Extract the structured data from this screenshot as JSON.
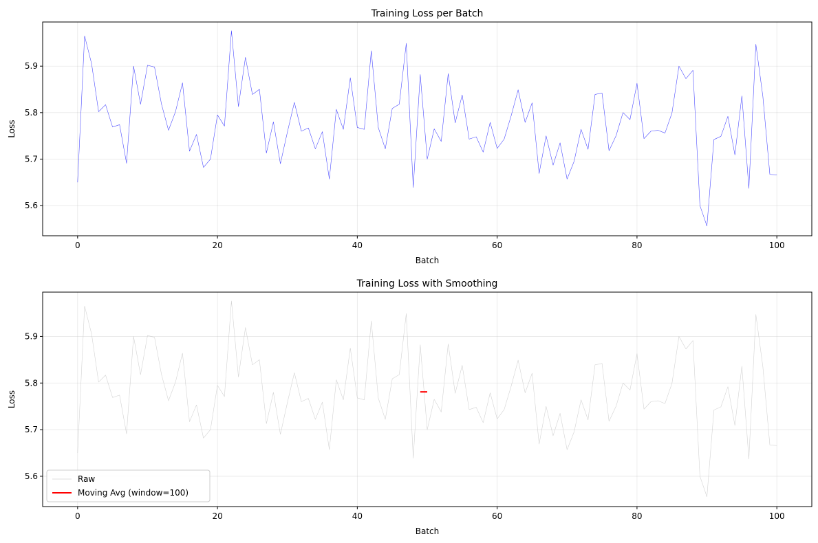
{
  "chart_data": [
    {
      "type": "line",
      "title": "Training Loss per Batch",
      "xlabel": "Batch",
      "ylabel": "Loss",
      "xlim": [
        -5,
        105
      ],
      "ylim": [
        5.535,
        5.995
      ],
      "xticks": [
        0,
        20,
        40,
        60,
        80,
        100
      ],
      "yticks": [
        5.6,
        5.7,
        5.8,
        5.9
      ],
      "grid": true,
      "legend": null,
      "series": [
        {
          "color": "#0000ff",
          "x": [
            0,
            1,
            2,
            3,
            4,
            5,
            6,
            7,
            8,
            9,
            10,
            11,
            12,
            13,
            14,
            15,
            16,
            17,
            18,
            19,
            20,
            21,
            22,
            23,
            24,
            25,
            26,
            27,
            28,
            29,
            30,
            31,
            32,
            33,
            34,
            35,
            36,
            37,
            38,
            39,
            40,
            41,
            42,
            43,
            44,
            45,
            46,
            47,
            48,
            49,
            50,
            51,
            52,
            53,
            54,
            55,
            56,
            57,
            58,
            59,
            60,
            61,
            62,
            63,
            64,
            65,
            66,
            67,
            68,
            69,
            70,
            71,
            72,
            73,
            74,
            75,
            76,
            77,
            78,
            79,
            80,
            81,
            82,
            83,
            84,
            85,
            86,
            87,
            88,
            89,
            90,
            91,
            92,
            93,
            94,
            95,
            96,
            97,
            98,
            99,
            100
          ],
          "y": [
            5.65,
            5.965,
            5.905,
            5.802,
            5.817,
            5.769,
            5.774,
            5.691,
            5.9,
            5.818,
            5.902,
            5.898,
            5.818,
            5.762,
            5.802,
            5.864,
            5.717,
            5.753,
            5.682,
            5.7,
            5.795,
            5.771,
            5.976,
            5.813,
            5.919,
            5.839,
            5.85,
            5.713,
            5.78,
            5.69,
            5.758,
            5.822,
            5.76,
            5.767,
            5.722,
            5.759,
            5.657,
            5.807,
            5.764,
            5.875,
            5.768,
            5.764,
            5.933,
            5.768,
            5.722,
            5.809,
            5.818,
            5.949,
            5.639,
            5.882,
            5.7,
            5.765,
            5.738,
            5.884,
            5.778,
            5.838,
            5.743,
            5.748,
            5.715,
            5.779,
            5.723,
            5.743,
            5.793,
            5.849,
            5.779,
            5.821,
            5.669,
            5.75,
            5.687,
            5.735,
            5.657,
            5.695,
            5.764,
            5.721,
            5.839,
            5.842,
            5.718,
            5.75,
            5.8,
            5.785,
            5.863,
            5.744,
            5.76,
            5.762,
            5.756,
            5.799,
            5.9,
            5.873,
            5.891,
            5.6,
            5.556,
            5.742,
            5.749,
            5.792,
            5.709,
            5.836,
            5.637,
            5.947,
            5.835,
            5.667,
            5.666
          ]
        }
      ]
    },
    {
      "type": "line",
      "title": "Training Loss with Smoothing",
      "xlabel": "Batch",
      "ylabel": "Loss",
      "xlim": [
        -5,
        105
      ],
      "ylim": [
        5.535,
        5.995
      ],
      "xticks": [
        0,
        20,
        40,
        60,
        80,
        100
      ],
      "yticks": [
        5.6,
        5.7,
        5.8,
        5.9
      ],
      "grid": true,
      "legend": "lower-left",
      "series": [
        {
          "name": "Raw",
          "color": "#c0c0c0",
          "x": [
            0,
            1,
            2,
            3,
            4,
            5,
            6,
            7,
            8,
            9,
            10,
            11,
            12,
            13,
            14,
            15,
            16,
            17,
            18,
            19,
            20,
            21,
            22,
            23,
            24,
            25,
            26,
            27,
            28,
            29,
            30,
            31,
            32,
            33,
            34,
            35,
            36,
            37,
            38,
            39,
            40,
            41,
            42,
            43,
            44,
            45,
            46,
            47,
            48,
            49,
            50,
            51,
            52,
            53,
            54,
            55,
            56,
            57,
            58,
            59,
            60,
            61,
            62,
            63,
            64,
            65,
            66,
            67,
            68,
            69,
            70,
            71,
            72,
            73,
            74,
            75,
            76,
            77,
            78,
            79,
            80,
            81,
            82,
            83,
            84,
            85,
            86,
            87,
            88,
            89,
            90,
            91,
            92,
            93,
            94,
            95,
            96,
            97,
            98,
            99,
            100
          ],
          "y": [
            5.65,
            5.965,
            5.905,
            5.802,
            5.817,
            5.769,
            5.774,
            5.691,
            5.9,
            5.818,
            5.902,
            5.898,
            5.818,
            5.762,
            5.802,
            5.864,
            5.717,
            5.753,
            5.682,
            5.7,
            5.795,
            5.771,
            5.976,
            5.813,
            5.919,
            5.839,
            5.85,
            5.713,
            5.78,
            5.69,
            5.758,
            5.822,
            5.76,
            5.767,
            5.722,
            5.759,
            5.657,
            5.807,
            5.764,
            5.875,
            5.768,
            5.764,
            5.933,
            5.768,
            5.722,
            5.809,
            5.818,
            5.949,
            5.639,
            5.882,
            5.7,
            5.765,
            5.738,
            5.884,
            5.778,
            5.838,
            5.743,
            5.748,
            5.715,
            5.779,
            5.723,
            5.743,
            5.793,
            5.849,
            5.779,
            5.821,
            5.669,
            5.75,
            5.687,
            5.735,
            5.657,
            5.695,
            5.764,
            5.721,
            5.839,
            5.842,
            5.718,
            5.75,
            5.8,
            5.785,
            5.863,
            5.744,
            5.76,
            5.762,
            5.756,
            5.799,
            5.9,
            5.873,
            5.891,
            5.6,
            5.556,
            5.742,
            5.749,
            5.792,
            5.709,
            5.836,
            5.637,
            5.947,
            5.835,
            5.667,
            5.666
          ]
        },
        {
          "name": "Moving Avg (window=100)",
          "color": "#ff0000",
          "x": [
            49,
            50
          ],
          "y": [
            5.781,
            5.781
          ]
        }
      ]
    }
  ]
}
